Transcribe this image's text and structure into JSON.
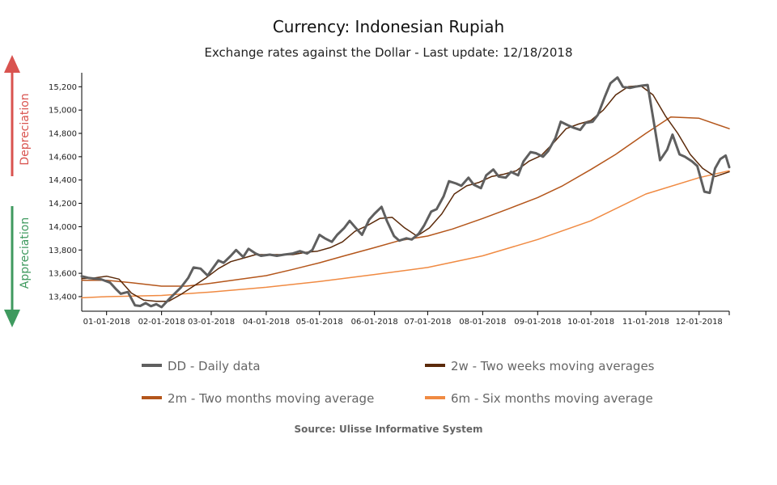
{
  "chart_data": {
    "type": "line",
    "title": "Currency: Indonesian Rupiah",
    "subtitle": "Exchange rates against the Dollar - Last update: 12/18/2018",
    "source": "Source: Ulisse Informative System",
    "side_labels": {
      "up": "Depreciation",
      "down": "Appreciation"
    },
    "colors": {
      "up": "#d9534f",
      "down": "#3f9a5f"
    },
    "x_ticks": [
      "01-01-2018",
      "02-01-2018",
      "03-01-2018",
      "04-01-2018",
      "05-01-2018",
      "06-01-2018",
      "07-01-2018",
      "08-01-2018",
      "09-01-2018",
      "10-01-2018",
      "11-01-2018",
      "12-01-2018"
    ],
    "y_ticks": [
      13400,
      13600,
      13800,
      14000,
      14200,
      14400,
      14600,
      14800,
      15000,
      15200
    ],
    "y_tick_labels": [
      "13,400",
      "13,600",
      "13,800",
      "14,000",
      "14,200",
      "14,400",
      "14,600",
      "14,800",
      "15,000",
      "15,200"
    ],
    "xlim": [
      "2017-12-18",
      "2018-12-18"
    ],
    "ylim": [
      13275,
      15320
    ],
    "grid": false,
    "legend_position": "bottom",
    "series": [
      {
        "name": "DD - Daily data",
        "color": "#5f5f5f",
        "width": 3,
        "points": [
          [
            "2017-12-18",
            13575
          ],
          [
            "2017-12-22",
            13560
          ],
          [
            "2017-12-29",
            13548
          ],
          [
            "2018-01-03",
            13520
          ],
          [
            "2018-01-06",
            13470
          ],
          [
            "2018-01-09",
            13425
          ],
          [
            "2018-01-13",
            13440
          ],
          [
            "2018-01-17",
            13325
          ],
          [
            "2018-01-20",
            13320
          ],
          [
            "2018-01-23",
            13345
          ],
          [
            "2018-01-26",
            13318
          ],
          [
            "2018-01-29",
            13335
          ],
          [
            "2018-02-01",
            13310
          ],
          [
            "2018-02-05",
            13375
          ],
          [
            "2018-02-08",
            13420
          ],
          [
            "2018-02-12",
            13480
          ],
          [
            "2018-02-16",
            13560
          ],
          [
            "2018-02-19",
            13650
          ],
          [
            "2018-02-23",
            13640
          ],
          [
            "2018-02-27",
            13580
          ],
          [
            "2018-03-01",
            13625
          ],
          [
            "2018-03-05",
            13710
          ],
          [
            "2018-03-08",
            13690
          ],
          [
            "2018-03-12",
            13750
          ],
          [
            "2018-03-15",
            13800
          ],
          [
            "2018-03-19",
            13740
          ],
          [
            "2018-03-22",
            13810
          ],
          [
            "2018-03-26",
            13770
          ],
          [
            "2018-03-29",
            13750
          ],
          [
            "2018-04-03",
            13760
          ],
          [
            "2018-04-07",
            13750
          ],
          [
            "2018-04-11",
            13760
          ],
          [
            "2018-04-16",
            13770
          ],
          [
            "2018-04-20",
            13790
          ],
          [
            "2018-04-24",
            13770
          ],
          [
            "2018-04-27",
            13800
          ],
          [
            "2018-05-01",
            13930
          ],
          [
            "2018-05-04",
            13900
          ],
          [
            "2018-05-08",
            13870
          ],
          [
            "2018-05-11",
            13930
          ],
          [
            "2018-05-15",
            13990
          ],
          [
            "2018-05-18",
            14050
          ],
          [
            "2018-05-22",
            13980
          ],
          [
            "2018-05-25",
            13930
          ],
          [
            "2018-05-29",
            14060
          ],
          [
            "2018-06-01",
            14110
          ],
          [
            "2018-06-05",
            14170
          ],
          [
            "2018-06-08",
            14050
          ],
          [
            "2018-06-12",
            13920
          ],
          [
            "2018-06-15",
            13880
          ],
          [
            "2018-06-19",
            13900
          ],
          [
            "2018-06-22",
            13890
          ],
          [
            "2018-06-26",
            13940
          ],
          [
            "2018-06-29",
            14010
          ],
          [
            "2018-07-03",
            14130
          ],
          [
            "2018-07-06",
            14150
          ],
          [
            "2018-07-10",
            14260
          ],
          [
            "2018-07-13",
            14390
          ],
          [
            "2018-07-17",
            14370
          ],
          [
            "2018-07-20",
            14350
          ],
          [
            "2018-07-24",
            14420
          ],
          [
            "2018-07-27",
            14360
          ],
          [
            "2018-07-31",
            14330
          ],
          [
            "2018-08-03",
            14440
          ],
          [
            "2018-08-07",
            14490
          ],
          [
            "2018-08-10",
            14430
          ],
          [
            "2018-08-14",
            14420
          ],
          [
            "2018-08-17",
            14470
          ],
          [
            "2018-08-21",
            14440
          ],
          [
            "2018-08-24",
            14560
          ],
          [
            "2018-08-28",
            14640
          ],
          [
            "2018-08-31",
            14630
          ],
          [
            "2018-09-04",
            14600
          ],
          [
            "2018-09-07",
            14650
          ],
          [
            "2018-09-11",
            14760
          ],
          [
            "2018-09-14",
            14900
          ],
          [
            "2018-09-18",
            14870
          ],
          [
            "2018-09-21",
            14850
          ],
          [
            "2018-09-25",
            14830
          ],
          [
            "2018-09-28",
            14890
          ],
          [
            "2018-10-02",
            14900
          ],
          [
            "2018-10-05",
            14960
          ],
          [
            "2018-10-09",
            15120
          ],
          [
            "2018-10-12",
            15230
          ],
          [
            "2018-10-16",
            15280
          ],
          [
            "2018-10-19",
            15200
          ],
          [
            "2018-10-23",
            15190
          ],
          [
            "2018-10-26",
            15200
          ],
          [
            "2018-10-30",
            15210
          ],
          [
            "2018-11-02",
            15215
          ],
          [
            "2018-11-06",
            14850
          ],
          [
            "2018-11-09",
            14570
          ],
          [
            "2018-11-13",
            14660
          ],
          [
            "2018-11-16",
            14790
          ],
          [
            "2018-11-20",
            14620
          ],
          [
            "2018-11-23",
            14600
          ],
          [
            "2018-11-27",
            14560
          ],
          [
            "2018-11-30",
            14520
          ],
          [
            "2018-12-04",
            14300
          ],
          [
            "2018-12-07",
            14290
          ],
          [
            "2018-12-10",
            14500
          ],
          [
            "2018-12-13",
            14580
          ],
          [
            "2018-12-16",
            14610
          ],
          [
            "2018-12-18",
            14510
          ]
        ]
      },
      {
        "name": "2w - Two weeks moving averages",
        "color": "#5b2a0a",
        "width": 1.5,
        "points": [
          [
            "2017-12-18",
            13555
          ],
          [
            "2017-12-25",
            13560
          ],
          [
            "2018-01-01",
            13575
          ],
          [
            "2018-01-08",
            13550
          ],
          [
            "2018-01-15",
            13430
          ],
          [
            "2018-01-22",
            13370
          ],
          [
            "2018-01-29",
            13360
          ],
          [
            "2018-02-05",
            13360
          ],
          [
            "2018-02-12",
            13420
          ],
          [
            "2018-02-19",
            13490
          ],
          [
            "2018-02-26",
            13560
          ],
          [
            "2018-03-05",
            13640
          ],
          [
            "2018-03-12",
            13700
          ],
          [
            "2018-03-19",
            13730
          ],
          [
            "2018-03-26",
            13760
          ],
          [
            "2018-04-02",
            13760
          ],
          [
            "2018-04-09",
            13760
          ],
          [
            "2018-04-16",
            13760
          ],
          [
            "2018-04-23",
            13780
          ],
          [
            "2018-04-30",
            13790
          ],
          [
            "2018-05-07",
            13820
          ],
          [
            "2018-05-14",
            13870
          ],
          [
            "2018-05-21",
            13960
          ],
          [
            "2018-05-28",
            14010
          ],
          [
            "2018-06-04",
            14070
          ],
          [
            "2018-06-11",
            14080
          ],
          [
            "2018-06-18",
            13990
          ],
          [
            "2018-06-25",
            13920
          ],
          [
            "2018-07-02",
            13990
          ],
          [
            "2018-07-09",
            14110
          ],
          [
            "2018-07-16",
            14280
          ],
          [
            "2018-07-23",
            14350
          ],
          [
            "2018-07-30",
            14380
          ],
          [
            "2018-08-06",
            14430
          ],
          [
            "2018-08-13",
            14450
          ],
          [
            "2018-08-20",
            14480
          ],
          [
            "2018-08-27",
            14560
          ],
          [
            "2018-09-03",
            14610
          ],
          [
            "2018-09-10",
            14720
          ],
          [
            "2018-09-17",
            14840
          ],
          [
            "2018-09-24",
            14880
          ],
          [
            "2018-10-01",
            14910
          ],
          [
            "2018-10-08",
            15000
          ],
          [
            "2018-10-15",
            15130
          ],
          [
            "2018-10-22",
            15200
          ],
          [
            "2018-10-29",
            15210
          ],
          [
            "2018-11-05",
            15130
          ],
          [
            "2018-11-12",
            14950
          ],
          [
            "2018-11-19",
            14800
          ],
          [
            "2018-11-26",
            14620
          ],
          [
            "2018-12-03",
            14500
          ],
          [
            "2018-12-10",
            14430
          ],
          [
            "2018-12-18",
            14470
          ]
        ]
      },
      {
        "name": "2m - Two months moving average",
        "color": "#b4561b",
        "width": 1.5,
        "points": [
          [
            "2017-12-18",
            13540
          ],
          [
            "2018-01-01",
            13540
          ],
          [
            "2018-01-15",
            13520
          ],
          [
            "2018-02-01",
            13490
          ],
          [
            "2018-02-15",
            13490
          ],
          [
            "2018-03-01",
            13515
          ],
          [
            "2018-03-15",
            13545
          ],
          [
            "2018-04-01",
            13580
          ],
          [
            "2018-04-15",
            13630
          ],
          [
            "2018-05-01",
            13690
          ],
          [
            "2018-05-15",
            13750
          ],
          [
            "2018-06-01",
            13820
          ],
          [
            "2018-06-15",
            13880
          ],
          [
            "2018-07-01",
            13920
          ],
          [
            "2018-07-15",
            13980
          ],
          [
            "2018-08-01",
            14070
          ],
          [
            "2018-08-15",
            14150
          ],
          [
            "2018-09-01",
            14250
          ],
          [
            "2018-09-15",
            14350
          ],
          [
            "2018-10-01",
            14490
          ],
          [
            "2018-10-15",
            14620
          ],
          [
            "2018-11-01",
            14800
          ],
          [
            "2018-11-15",
            14940
          ],
          [
            "2018-12-01",
            14930
          ],
          [
            "2018-12-18",
            14840
          ]
        ]
      },
      {
        "name": "6m - Six months moving average",
        "color": "#f08a42",
        "width": 1.5,
        "points": [
          [
            "2017-12-18",
            13390
          ],
          [
            "2018-01-01",
            13400
          ],
          [
            "2018-02-01",
            13410
          ],
          [
            "2018-03-01",
            13440
          ],
          [
            "2018-04-01",
            13480
          ],
          [
            "2018-05-01",
            13530
          ],
          [
            "2018-06-01",
            13590
          ],
          [
            "2018-07-01",
            13650
          ],
          [
            "2018-08-01",
            13750
          ],
          [
            "2018-09-01",
            13890
          ],
          [
            "2018-10-01",
            14050
          ],
          [
            "2018-11-01",
            14280
          ],
          [
            "2018-12-01",
            14420
          ],
          [
            "2018-12-18",
            14480
          ]
        ]
      }
    ]
  }
}
